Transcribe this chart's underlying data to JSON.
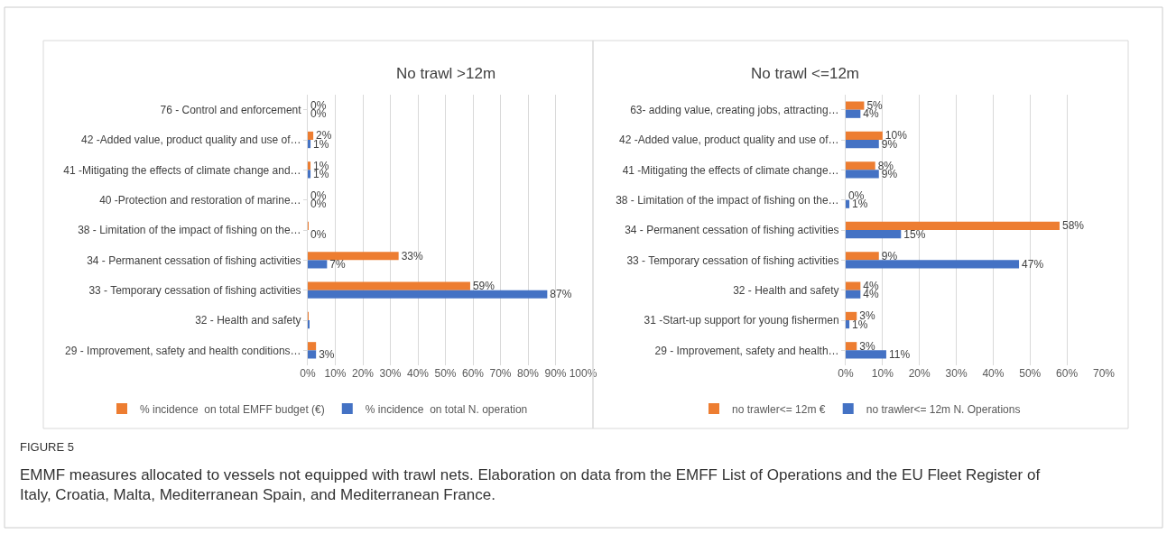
{
  "chart_data": [
    {
      "type": "bar",
      "orientation": "horizontal",
      "title": "No trawl >12m",
      "categories": [
        "76 - Control and enforcement",
        "42 -Added value, product quality and use of…",
        "41 -Mitigating the effects of climate change and…",
        "40 -Protection and restoration of marine…",
        "38 - Limitation of the impact of fishing on the…",
        "34 - Permanent cessation of fishing activities",
        "33 - Temporary cessation of fishing activities",
        "32 - Health and safety",
        "29 - Improvement, safety and health conditions…"
      ],
      "series": [
        {
          "name": "% incidence  on total EMFF budget (€)",
          "color": "#ed7d31",
          "values": [
            0,
            2,
            1,
            0,
            0.3,
            33,
            59,
            0.3,
            3
          ],
          "value_labels": [
            "0%",
            "2%",
            "1%",
            "0%",
            null,
            "33%",
            "59%",
            null,
            null
          ]
        },
        {
          "name": "% incidence  on total N. operation",
          "color": "#4472c4",
          "values": [
            0,
            1,
            1,
            0,
            0,
            7,
            87,
            0.5,
            3
          ],
          "value_labels": [
            "0%",
            "1%",
            "1%",
            "0%",
            "0%",
            "7%",
            "87%",
            null,
            "3%"
          ]
        }
      ],
      "xlim": [
        0,
        100
      ],
      "xticks": [
        {
          "value": 0,
          "label": "0%"
        },
        {
          "value": 10,
          "label": "10%"
        },
        {
          "value": 20,
          "label": "20%"
        },
        {
          "value": 30,
          "label": "30%"
        },
        {
          "value": 40,
          "label": "40%"
        },
        {
          "value": 50,
          "label": "50%"
        },
        {
          "value": 60,
          "label": "60%"
        },
        {
          "value": 70,
          "label": "70%"
        },
        {
          "value": 80,
          "label": "80%"
        },
        {
          "value": 90,
          "label": "90%"
        },
        {
          "value": 100,
          "label": "100%"
        }
      ],
      "grid": "x",
      "legend": "bottom"
    },
    {
      "type": "bar",
      "orientation": "horizontal",
      "title": "No trawl <=12m",
      "categories": [
        "63- adding value, creating jobs, attracting…",
        "42 -Added value, product quality and use of…",
        "41 -Mitigating the effects of climate change…",
        "38 - Limitation of the impact of fishing on the…",
        "34 - Permanent cessation of fishing activities",
        "33 - Temporary cessation of fishing activities",
        "32 - Health and safety",
        "31 -Start-up support for young fishermen",
        "29 - Improvement, safety and health…"
      ],
      "series": [
        {
          "name": "no trawler<= 12m €",
          "color": "#ed7d31",
          "values": [
            5,
            10,
            8,
            0,
            58,
            9,
            4,
            3,
            3
          ],
          "value_labels": [
            "5%",
            "10%",
            "8%",
            "0%",
            "58%",
            "9%",
            "4%",
            "3%",
            "3%"
          ]
        },
        {
          "name": "no trawler<= 12m N. Operations",
          "color": "#4472c4",
          "values": [
            4,
            9,
            9,
            1,
            15,
            47,
            4,
            1,
            11
          ],
          "value_labels": [
            "4%",
            "9%",
            "9%",
            "1%",
            "15%",
            "47%",
            "4%",
            "1%",
            "11%"
          ]
        }
      ],
      "xlim": [
        0,
        70
      ],
      "xticks": [
        {
          "value": 0,
          "label": "0%"
        },
        {
          "value": 10,
          "label": "10%"
        },
        {
          "value": 20,
          "label": "20%"
        },
        {
          "value": 30,
          "label": "30%"
        },
        {
          "value": 40,
          "label": "40%"
        },
        {
          "value": 50,
          "label": "50%"
        },
        {
          "value": 60,
          "label": "60%"
        },
        {
          "value": 70,
          "label": "70%"
        }
      ],
      "grid": "x",
      "legend": "bottom",
      "annotations": [
        "FIGURE 5",
        "EMMF measures allocated to vessels not equipped with trawl nets. Elaboration on data from the EMFF List of Operations and the EU Fleet Register of Italy, Croatia, Malta, Mediterranean Spain, and Mediterranean France."
      ]
    }
  ]
}
